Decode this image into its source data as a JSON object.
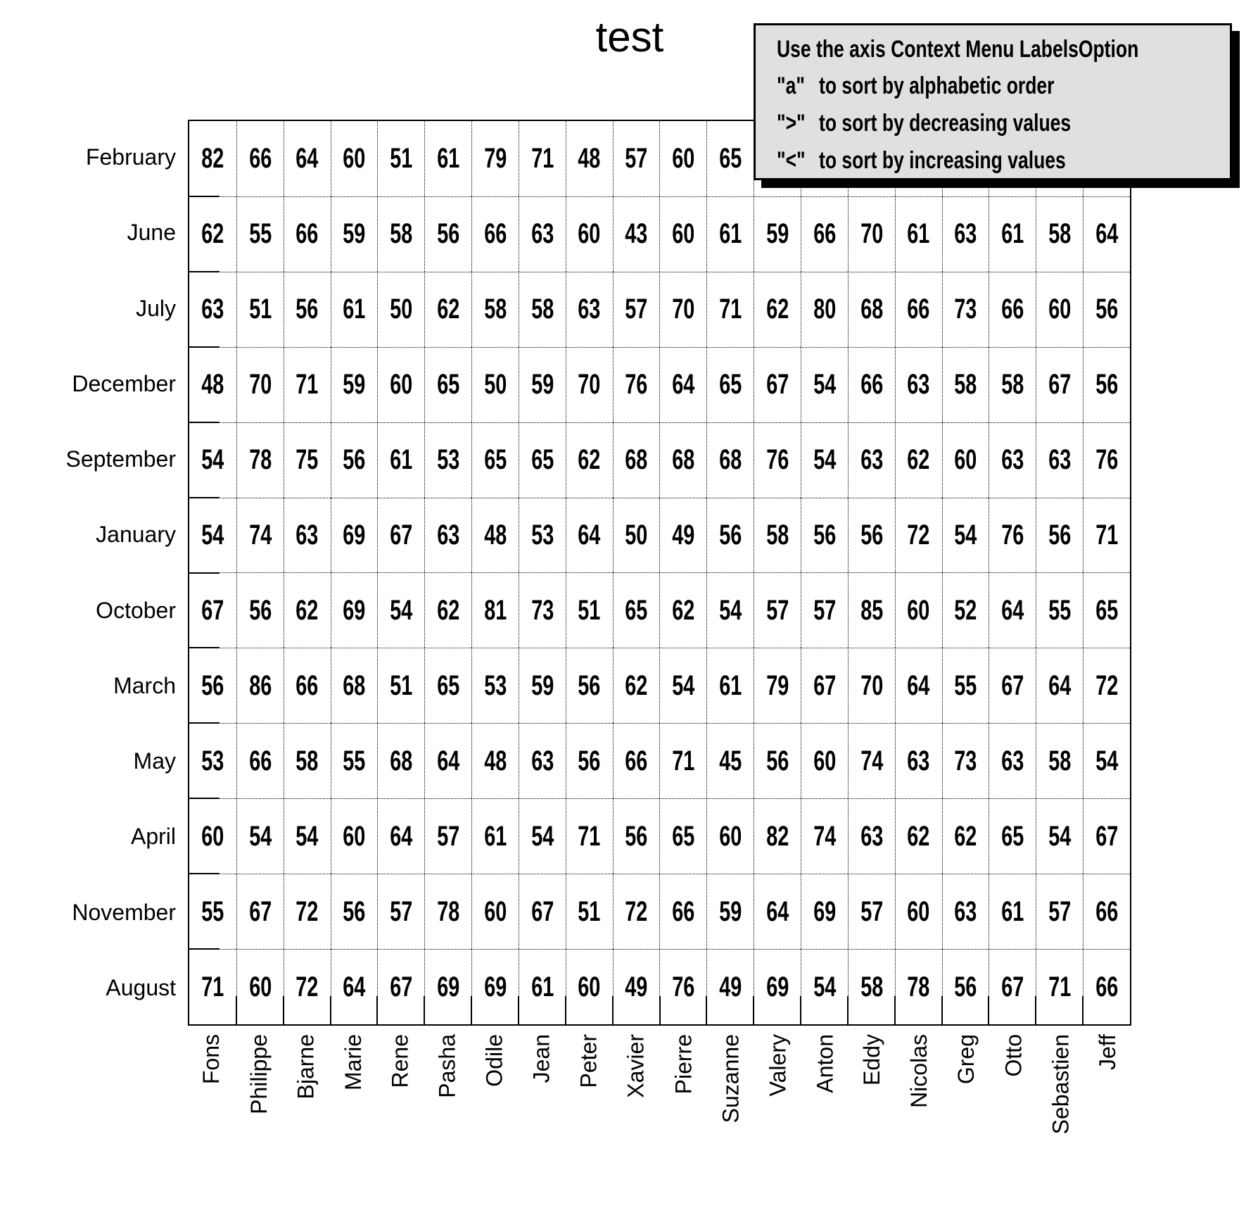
{
  "title": "test",
  "note_box": {
    "heading": "Use the axis Context Menu LabelsOption",
    "items": [
      {
        "key": "\"a\"",
        "text": "to sort by alphabetic order"
      },
      {
        "key": "\">\"",
        "text": "to sort by decreasing values"
      },
      {
        "key": "\"<\"",
        "text": "to sort by increasing values"
      }
    ]
  },
  "chart_data": {
    "type": "heatmap",
    "title": "test",
    "x_axis_labels": [
      "Fons",
      "Philippe",
      "Bjarne",
      "Marie",
      "Rene",
      "Pasha",
      "Odile",
      "Jean",
      "Peter",
      "Xavier",
      "Pierre",
      "Suzanne",
      "Valery",
      "Anton",
      "Eddy",
      "Nicolas",
      "Greg",
      "Otto",
      "Sebastien",
      "Jeff"
    ],
    "y_axis_labels": [
      "February",
      "June",
      "July",
      "December",
      "September",
      "January",
      "October",
      "March",
      "May",
      "April",
      "November",
      "August"
    ],
    "values": [
      [
        82,
        66,
        64,
        60,
        51,
        61,
        79,
        71,
        48,
        57,
        60,
        65,
        null,
        null,
        null,
        null,
        null,
        null,
        null,
        null
      ],
      [
        62,
        55,
        66,
        59,
        58,
        56,
        66,
        63,
        60,
        43,
        60,
        61,
        59,
        66,
        70,
        61,
        63,
        61,
        58,
        64
      ],
      [
        63,
        51,
        56,
        61,
        50,
        62,
        58,
        58,
        63,
        57,
        70,
        71,
        62,
        80,
        68,
        66,
        73,
        66,
        60,
        56
      ],
      [
        48,
        70,
        71,
        59,
        60,
        65,
        50,
        59,
        70,
        76,
        64,
        65,
        67,
        54,
        66,
        63,
        58,
        58,
        67,
        56
      ],
      [
        54,
        78,
        75,
        56,
        61,
        53,
        65,
        65,
        62,
        68,
        68,
        68,
        76,
        54,
        63,
        62,
        60,
        63,
        63,
        76
      ],
      [
        54,
        74,
        63,
        69,
        67,
        63,
        48,
        53,
        64,
        50,
        49,
        56,
        58,
        56,
        56,
        72,
        54,
        76,
        56,
        71
      ],
      [
        67,
        56,
        62,
        69,
        54,
        62,
        81,
        73,
        51,
        65,
        62,
        54,
        57,
        57,
        85,
        60,
        52,
        64,
        55,
        65
      ],
      [
        56,
        86,
        66,
        68,
        51,
        65,
        53,
        59,
        56,
        62,
        54,
        61,
        79,
        67,
        70,
        64,
        55,
        67,
        64,
        72
      ],
      [
        53,
        66,
        58,
        55,
        68,
        64,
        48,
        63,
        56,
        66,
        71,
        45,
        56,
        60,
        74,
        63,
        73,
        63,
        58,
        54
      ],
      [
        60,
        54,
        54,
        60,
        64,
        57,
        61,
        54,
        71,
        56,
        65,
        60,
        82,
        74,
        63,
        62,
        62,
        65,
        54,
        67
      ],
      [
        55,
        67,
        72,
        56,
        57,
        78,
        60,
        67,
        51,
        72,
        66,
        59,
        64,
        69,
        57,
        60,
        63,
        61,
        57,
        66
      ],
      [
        71,
        60,
        72,
        64,
        67,
        69,
        69,
        61,
        60,
        49,
        76,
        49,
        69,
        54,
        58,
        78,
        56,
        67,
        71,
        66
      ]
    ],
    "grid": "dotted",
    "legend_position": "none",
    "colors": {
      "text": "#000000",
      "background": "#ffffff",
      "note_box_bg": "#e0e0e0"
    }
  }
}
